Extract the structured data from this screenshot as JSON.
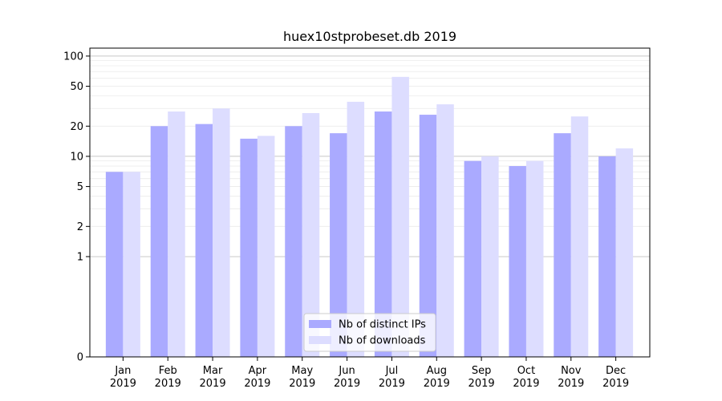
{
  "chart_data": {
    "type": "bar",
    "title": "huex10stprobeset.db 2019",
    "xlabel": "",
    "ylabel": "",
    "categories": [
      [
        "Jan",
        "2019"
      ],
      [
        "Feb",
        "2019"
      ],
      [
        "Mar",
        "2019"
      ],
      [
        "Apr",
        "2019"
      ],
      [
        "May",
        "2019"
      ],
      [
        "Jun",
        "2019"
      ],
      [
        "Jul",
        "2019"
      ],
      [
        "Aug",
        "2019"
      ],
      [
        "Sep",
        "2019"
      ],
      [
        "Oct",
        "2019"
      ],
      [
        "Nov",
        "2019"
      ],
      [
        "Dec",
        "2019"
      ]
    ],
    "series": [
      {
        "name": "Nb of distinct IPs",
        "color": "#aaaaff",
        "values": [
          7,
          20,
          21,
          15,
          20,
          17,
          28,
          26,
          9,
          8,
          17,
          10
        ]
      },
      {
        "name": "Nb of downloads",
        "color": "#ddddff",
        "values": [
          7,
          28,
          30,
          16,
          27,
          35,
          62,
          33,
          10,
          9,
          25,
          12
        ]
      }
    ],
    "y_scale": "symlog",
    "y_ticks": [
      0,
      1,
      2,
      5,
      10,
      20,
      50,
      100
    ],
    "y_tick_labels": [
      "0",
      "1",
      "2",
      "5",
      "10",
      "20",
      "50",
      "100"
    ],
    "ylim": [
      0,
      120
    ],
    "grid": true,
    "legend_position": "lower-center"
  }
}
